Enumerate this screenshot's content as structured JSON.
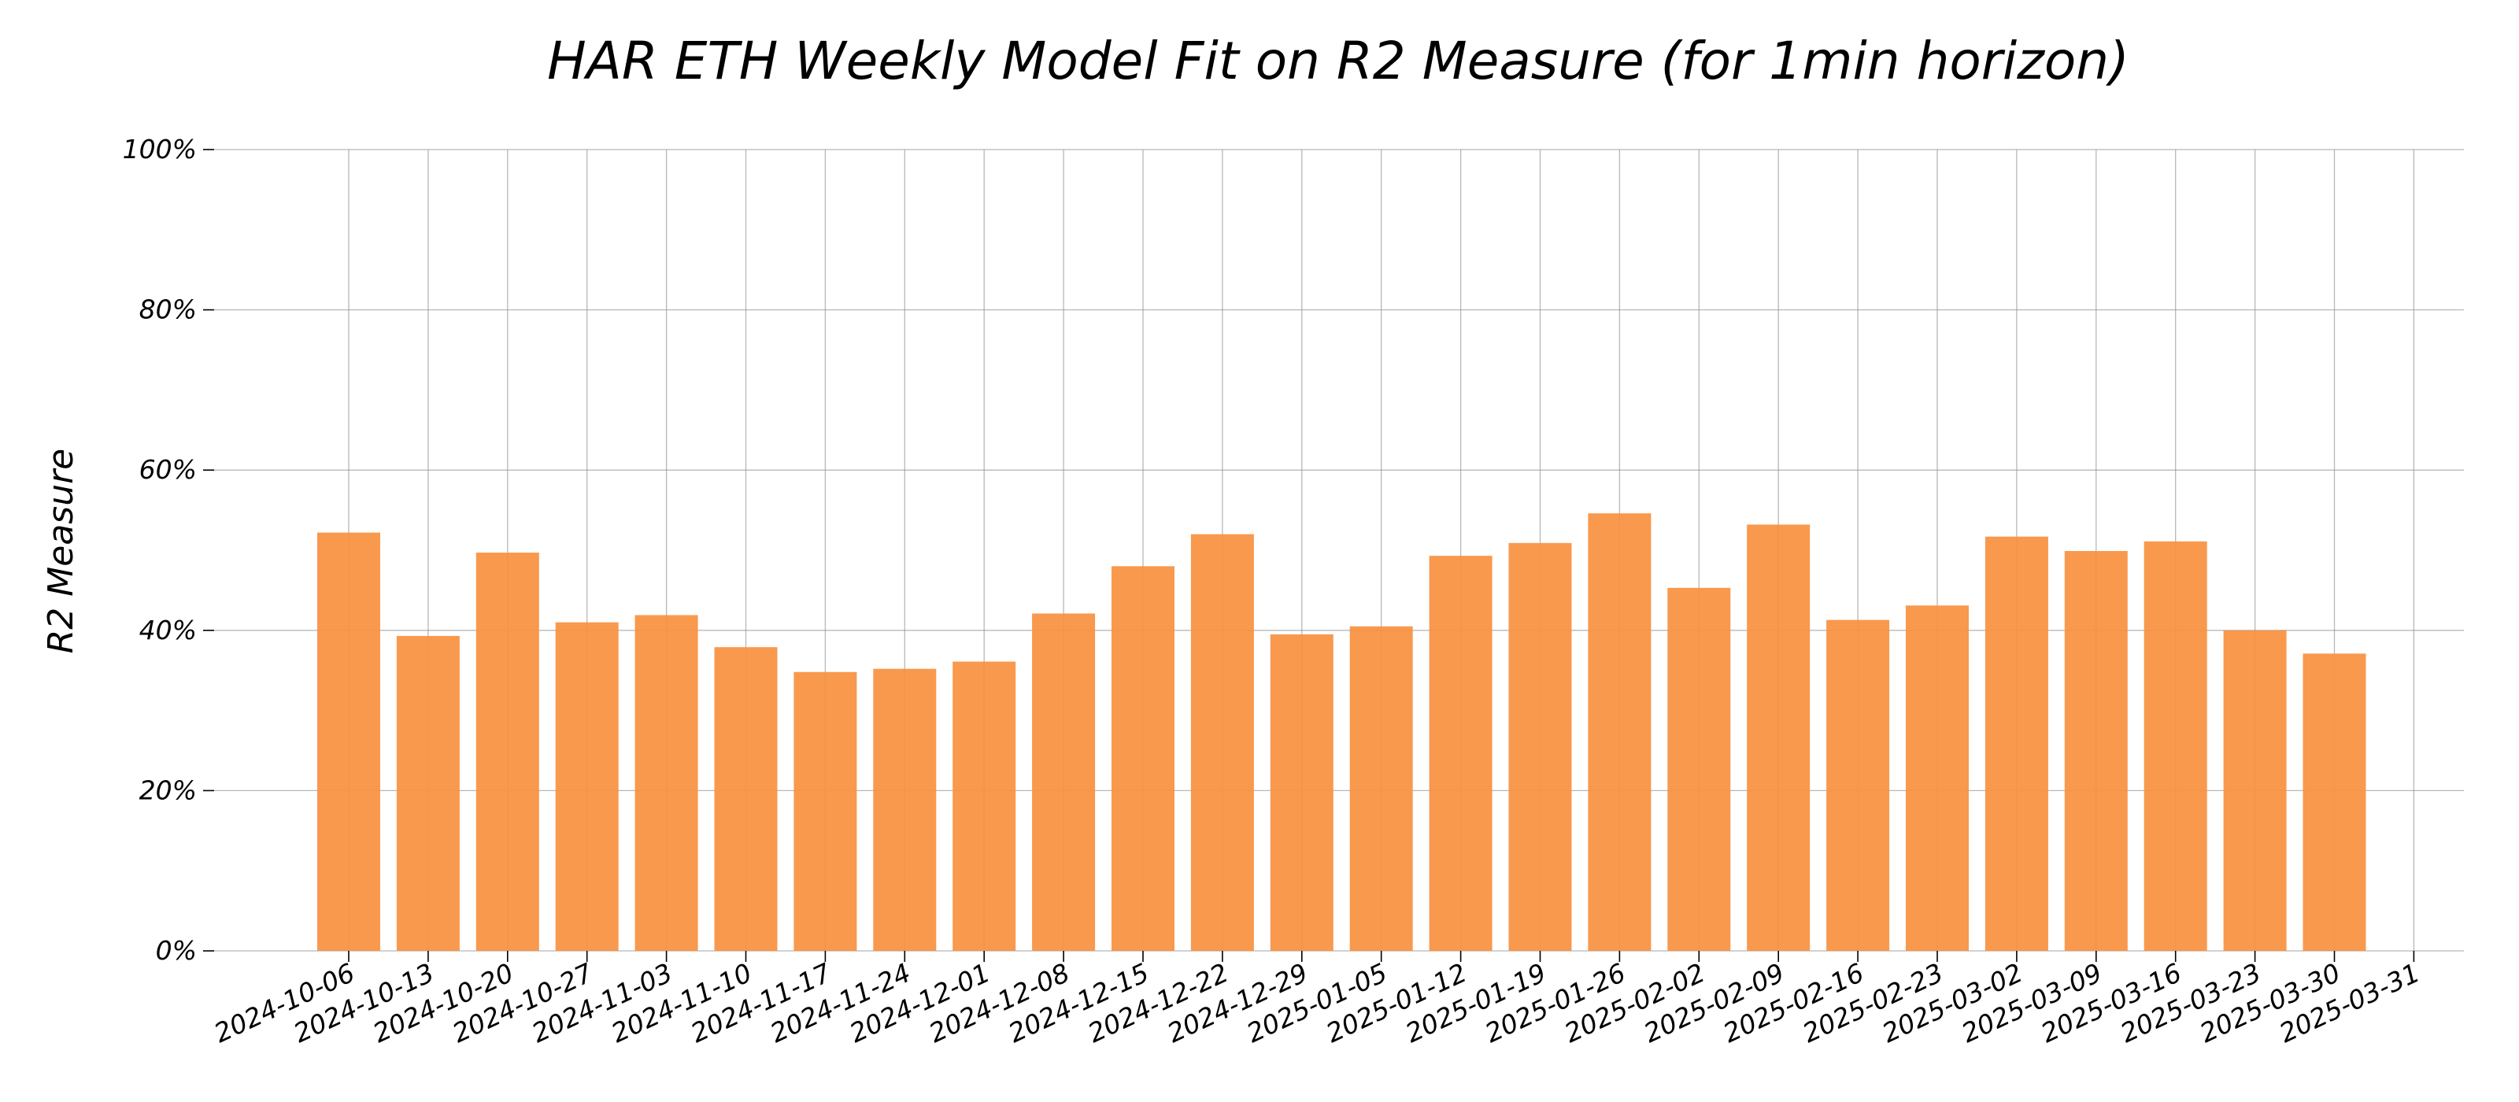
{
  "chart_data": {
    "type": "bar",
    "title": "HAR ETH Weekly Model Fit on R2 Measure (for 1min horizon)",
    "xlabel": "",
    "ylabel": "R2 Measure",
    "ylim": [
      0,
      100
    ],
    "y_ticks": [
      "0%",
      "20%",
      "40%",
      "60%",
      "80%",
      "100%"
    ],
    "grid": true,
    "bar_color": "#F7903F",
    "grid_color": "#888888",
    "x_tick_labels": [
      "2024-10-06",
      "2024-10-13",
      "2024-10-20",
      "2024-10-27",
      "2024-11-03",
      "2024-11-10",
      "2024-11-17",
      "2024-11-24",
      "2024-12-01",
      "2024-12-08",
      "2024-12-15",
      "2024-12-22",
      "2024-12-29",
      "2025-01-05",
      "2025-01-12",
      "2025-01-19",
      "2025-01-26",
      "2025-02-02",
      "2025-02-09",
      "2025-02-16",
      "2025-02-23",
      "2025-03-02",
      "2025-03-09",
      "2025-03-16",
      "2025-03-23",
      "2025-03-30",
      "2025-03-31"
    ],
    "categories": [
      "2024-10-06",
      "2024-10-13",
      "2024-10-20",
      "2024-10-27",
      "2024-11-03",
      "2024-11-10",
      "2024-11-17",
      "2024-11-24",
      "2024-12-01",
      "2024-12-08",
      "2024-12-15",
      "2024-12-22",
      "2024-12-29",
      "2025-01-05",
      "2025-01-12",
      "2025-01-19",
      "2025-01-26",
      "2025-02-02",
      "2025-02-09",
      "2025-02-16",
      "2025-02-23",
      "2025-03-02",
      "2025-03-09",
      "2025-03-16",
      "2025-03-23",
      "2025-03-30"
    ],
    "values": [
      52.2,
      39.3,
      49.7,
      41.0,
      41.9,
      37.9,
      34.8,
      35.2,
      36.1,
      42.1,
      48.0,
      52.0,
      39.5,
      40.5,
      49.3,
      50.9,
      54.6,
      45.3,
      53.2,
      41.3,
      43.1,
      51.7,
      49.9,
      51.1,
      40.0,
      37.1
    ]
  }
}
